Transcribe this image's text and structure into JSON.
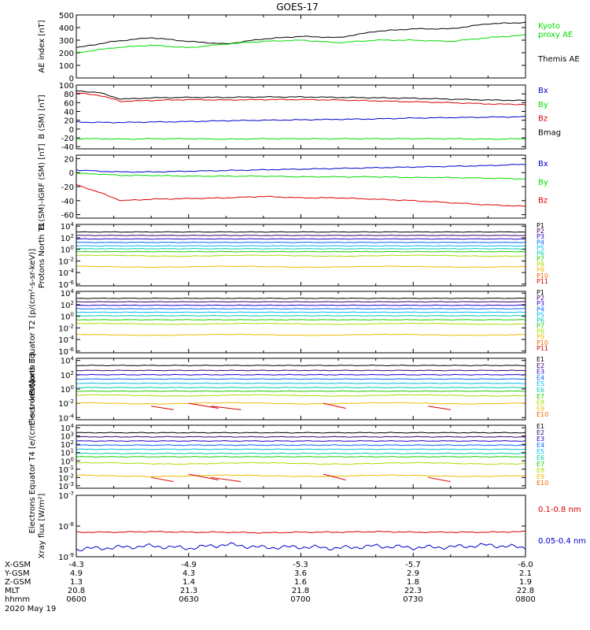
{
  "title": "GOES-17",
  "date": "2020 May 19",
  "colors": {
    "black": "#000000",
    "green": "#00dd00",
    "blue": "#0000cc",
    "red": "#dd0000",
    "rainbow": [
      "#000000",
      "#3a0070",
      "#2200cc",
      "#0066ff",
      "#00bbee",
      "#00ccaa",
      "#22cc00",
      "#aadd00",
      "#eebb00",
      "#ee6600",
      "#cc0000"
    ]
  },
  "chart_data": [
    {
      "type": "line",
      "id": "ae",
      "ylabel": "AE index [nT]",
      "ylim": [
        0,
        500
      ],
      "scale": "linear",
      "ticks": [
        0,
        100,
        200,
        300,
        400,
        500
      ],
      "tick_labels": [
        "0",
        "100",
        "200",
        "300",
        "400",
        "500"
      ],
      "x": [
        0,
        5,
        10,
        15,
        20,
        25,
        30,
        35,
        40,
        45,
        50,
        55,
        60
      ],
      "series": [
        {
          "name": "Themis AE",
          "color": "black",
          "values": [
            240,
            290,
            320,
            290,
            270,
            310,
            330,
            320,
            370,
            390,
            390,
            430,
            440
          ]
        },
        {
          "name": "Kyoto proxy AE",
          "color": "green",
          "values": [
            200,
            240,
            260,
            240,
            270,
            290,
            300,
            280,
            300,
            300,
            290,
            320,
            340
          ]
        }
      ],
      "legend": [
        {
          "text": "Kyoto",
          "color": "green"
        },
        {
          "text": "proxy AE",
          "color": "green"
        },
        {
          "text": "Themis AE",
          "color": "black"
        }
      ]
    },
    {
      "type": "line",
      "id": "bsm",
      "ylabel": "B (SM) [nT]",
      "ylim": [
        -45,
        100
      ],
      "scale": "linear",
      "ticks": [
        -40,
        -20,
        0,
        20,
        40,
        60,
        80,
        100
      ],
      "tick_labels": [
        "-40",
        "-20",
        "0",
        "20",
        "40",
        "60",
        "80",
        "100"
      ],
      "x": [
        0,
        3,
        6,
        10,
        15,
        20,
        25,
        30,
        35,
        40,
        45,
        50,
        55,
        60
      ],
      "series": [
        {
          "name": "Bx",
          "color": "blue",
          "values": [
            16,
            15,
            15,
            16,
            17,
            19,
            20,
            21,
            22,
            23,
            25,
            26,
            27,
            28
          ]
        },
        {
          "name": "By",
          "color": "green",
          "values": [
            -22,
            -22,
            -23,
            -22,
            -22,
            -23,
            -22,
            -22,
            -22,
            -22,
            -22,
            -22,
            -23,
            -22
          ]
        },
        {
          "name": "Bz",
          "color": "red",
          "values": [
            82,
            77,
            63,
            65,
            67,
            66,
            67,
            67,
            66,
            64,
            62,
            60,
            57,
            56
          ]
        },
        {
          "name": "Bmag",
          "color": "black",
          "values": [
            87,
            83,
            68,
            71,
            72,
            72,
            73,
            73,
            72,
            71,
            70,
            68,
            66,
            65
          ]
        }
      ],
      "legend": [
        {
          "text": "Bx",
          "color": "blue"
        },
        {
          "text": "By",
          "color": "green"
        },
        {
          "text": "Bz",
          "color": "red"
        },
        {
          "text": "Bmag",
          "color": "black"
        }
      ]
    },
    {
      "type": "line",
      "id": "bigrf",
      "ylabel": "B (SM)-IGRF (SM) [nT]",
      "ylim": [
        -65,
        25
      ],
      "scale": "linear",
      "ticks": [
        -60,
        -40,
        -20,
        0,
        20
      ],
      "tick_labels": [
        "-60",
        "-40",
        "-20",
        "0",
        "20"
      ],
      "x": [
        0,
        3,
        6,
        10,
        15,
        20,
        25,
        30,
        35,
        40,
        45,
        50,
        55,
        60
      ],
      "series": [
        {
          "name": "Bx",
          "color": "blue",
          "values": [
            4,
            2,
            1,
            1,
            2,
            3,
            4,
            5,
            6,
            7,
            8,
            9,
            10,
            12
          ]
        },
        {
          "name": "By",
          "color": "green",
          "values": [
            -1,
            -2,
            -4,
            -4,
            -5,
            -5,
            -5,
            -6,
            -6,
            -6,
            -7,
            -7,
            -8,
            -9
          ]
        },
        {
          "name": "Bz",
          "color": "red",
          "values": [
            -17,
            -28,
            -40,
            -38,
            -37,
            -36,
            -34,
            -36,
            -36,
            -38,
            -40,
            -43,
            -46,
            -48
          ]
        }
      ],
      "legend": [
        {
          "text": "Bx",
          "color": "blue"
        },
        {
          "text": "By",
          "color": "green"
        },
        {
          "text": "Bz",
          "color": "red"
        }
      ]
    },
    {
      "type": "line",
      "id": "pn",
      "ylabel": "Protons North T1",
      "ylim": [
        -6.3,
        4.3
      ],
      "scale": "log",
      "ticks": [
        4,
        2,
        0,
        -2,
        -4,
        -6
      ],
      "tick_labels": [
        "10^4",
        "10^2",
        "10^0",
        "10^-2",
        "10^-4",
        "10^-6"
      ],
      "series": [
        {
          "name": "P1",
          "level": 3.0
        },
        {
          "name": "P2",
          "level": 2.4
        },
        {
          "name": "P3",
          "level": 1.8
        },
        {
          "name": "P4",
          "level": 1.2
        },
        {
          "name": "P5",
          "level": 0.6
        },
        {
          "name": "P6",
          "level": 0.1
        },
        {
          "name": "P7",
          "level": -0.4
        },
        {
          "name": "P8",
          "level": -1.1
        },
        {
          "name": "P9",
          "level": -3.0
        },
        {
          "name": "P10",
          "level": -9
        },
        {
          "name": "P11",
          "level": -9
        }
      ]
    },
    {
      "type": "line",
      "id": "pe",
      "ylabel": "Protons Equator T2 [p/(cm²-s-sr-keV)]",
      "ylim": [
        -6.3,
        4.3
      ],
      "scale": "log",
      "ticks": [
        4,
        2,
        0,
        -2,
        -4,
        -6
      ],
      "tick_labels": [
        "10^4",
        "10^2",
        "10^0",
        "10^-2",
        "10^-4",
        "10^-6"
      ],
      "series": [
        {
          "name": "P1",
          "level": 3.1
        },
        {
          "name": "P2",
          "level": 2.5
        },
        {
          "name": "P3",
          "level": 1.9
        },
        {
          "name": "P4",
          "level": 1.3
        },
        {
          "name": "P5",
          "level": 0.7
        },
        {
          "name": "P6",
          "level": 0.1
        },
        {
          "name": "P7",
          "level": -0.6
        },
        {
          "name": "P8",
          "level": -1.3
        },
        {
          "name": "P9",
          "level": -3.2
        },
        {
          "name": "P10",
          "level": -9
        },
        {
          "name": "P11",
          "level": -9
        }
      ]
    },
    {
      "type": "line",
      "id": "en",
      "ylabel": "Electrons North T3",
      "ylim": [
        -4.3,
        4.3
      ],
      "scale": "log",
      "ticks": [
        4,
        2,
        0,
        -2,
        -4
      ],
      "tick_labels": [
        "10^4",
        "10^2",
        "10^0",
        "10^-2",
        "10^-4"
      ],
      "series": [
        {
          "name": "E1",
          "level": 3.3
        },
        {
          "name": "E2",
          "level": 2.6
        },
        {
          "name": "E3",
          "level": 2.0
        },
        {
          "name": "E4",
          "level": 1.4
        },
        {
          "name": "E5",
          "level": 0.8
        },
        {
          "name": "E6",
          "level": 0.2
        },
        {
          "name": "E7",
          "level": -0.3
        },
        {
          "name": "E8",
          "level": -0.9
        },
        {
          "name": "E9",
          "level": -2.0
        },
        {
          "name": "E10",
          "level": -9
        }
      ]
    },
    {
      "type": "line",
      "id": "ee",
      "ylabel": "Electrons Equator T4 [e/(cm²-s-sr-keV)]",
      "ylim": [
        -3.3,
        4.3
      ],
      "scale": "log",
      "ticks": [
        4,
        3,
        2,
        1,
        0,
        -1,
        -2,
        -3
      ],
      "tick_labels": [
        "10^4",
        "10^3",
        "10^2",
        "10^1",
        "10^0",
        "10^-1",
        "10^-2",
        "10^-3"
      ],
      "series": [
        {
          "name": "E1",
          "level": 3.4
        },
        {
          "name": "E2",
          "level": 2.9
        },
        {
          "name": "E3",
          "level": 2.4
        },
        {
          "name": "E4",
          "level": 1.9
        },
        {
          "name": "E5",
          "level": 1.4
        },
        {
          "name": "E6",
          "level": 0.9
        },
        {
          "name": "E7",
          "level": 0.5
        },
        {
          "name": "E8",
          "level": -0.3
        },
        {
          "name": "E9",
          "level": -1.8
        },
        {
          "name": "E10",
          "level": -9
        }
      ]
    },
    {
      "type": "line",
      "id": "xray",
      "ylabel": "Xray flux [W/m²]",
      "ylim": [
        -9,
        -7
      ],
      "scale": "log",
      "ticks": [
        -7,
        -8,
        -9
      ],
      "tick_labels": [
        "10^-7",
        "10^-8",
        "10^-9"
      ],
      "x": [
        0,
        5,
        10,
        15,
        20,
        25,
        30,
        35,
        40,
        45,
        50,
        55,
        60
      ],
      "series": [
        {
          "name": "0.1-0.8 nm",
          "color": "red",
          "values": [
            -8.2,
            -8.2,
            -8.18,
            -8.2,
            -8.2,
            -8.22,
            -8.2,
            -8.2,
            -8.18,
            -8.2,
            -8.2,
            -8.2,
            -8.18
          ]
        },
        {
          "name": "0.05-0.4 nm",
          "color": "blue",
          "values": [
            -8.75,
            -8.7,
            -8.65,
            -8.72,
            -8.6,
            -8.7,
            -8.68,
            -8.72,
            -8.65,
            -8.7,
            -8.68,
            -8.62,
            -8.7
          ]
        }
      ],
      "legend": [
        {
          "text": "0.1-0.8 nm",
          "color": "red"
        },
        {
          "text": "0.05-0.4 nm",
          "color": "blue"
        }
      ]
    }
  ],
  "xaxis": {
    "rows": [
      {
        "label": "X-GSM",
        "values": [
          "-4.3",
          "-4.9",
          "-5.3",
          "-5.7",
          "-6.0"
        ]
      },
      {
        "label": "Y-GSM",
        "values": [
          "4.9",
          "4.3",
          "3.6",
          "2.9",
          "2.1"
        ]
      },
      {
        "label": "Z-GSM",
        "values": [
          "1.3",
          "1.4",
          "1.6",
          "1.8",
          "1.9"
        ]
      },
      {
        "label": "MLT",
        "values": [
          "20.8",
          "21.3",
          "21.8",
          "22.3",
          "22.8"
        ]
      },
      {
        "label": "hhmm",
        "values": [
          "0600",
          "0630",
          "0700",
          "0730",
          "0800"
        ]
      }
    ]
  }
}
